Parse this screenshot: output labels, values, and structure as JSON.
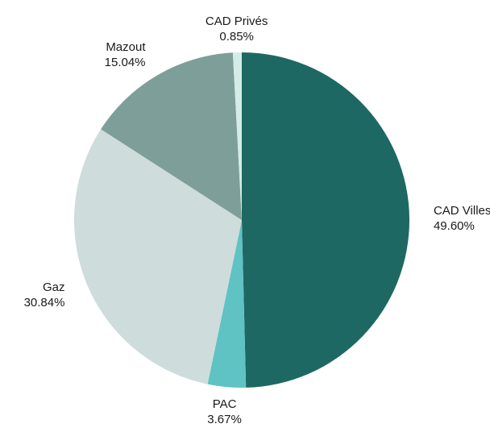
{
  "chart_data": {
    "type": "pie",
    "title": "",
    "slices": [
      {
        "label": "CAD Villes",
        "value": 49.6,
        "display_value": "49.60%",
        "color": "#1d6862"
      },
      {
        "label": "PAC",
        "value": 3.67,
        "display_value": "3.67%",
        "color": "#5fc2c3"
      },
      {
        "label": "Gaz",
        "value": 30.84,
        "display_value": "30.84%",
        "color": "#cfdcdc"
      },
      {
        "label": "Mazout",
        "value": 15.04,
        "display_value": "15.04%",
        "color": "#7e9e99"
      },
      {
        "label": "CAD Privés",
        "value": 0.85,
        "display_value": "0.85%",
        "color": "#d4ece8"
      }
    ],
    "start_angle": "top",
    "direction": "clockwise",
    "legend": "none",
    "labels": "outside"
  }
}
